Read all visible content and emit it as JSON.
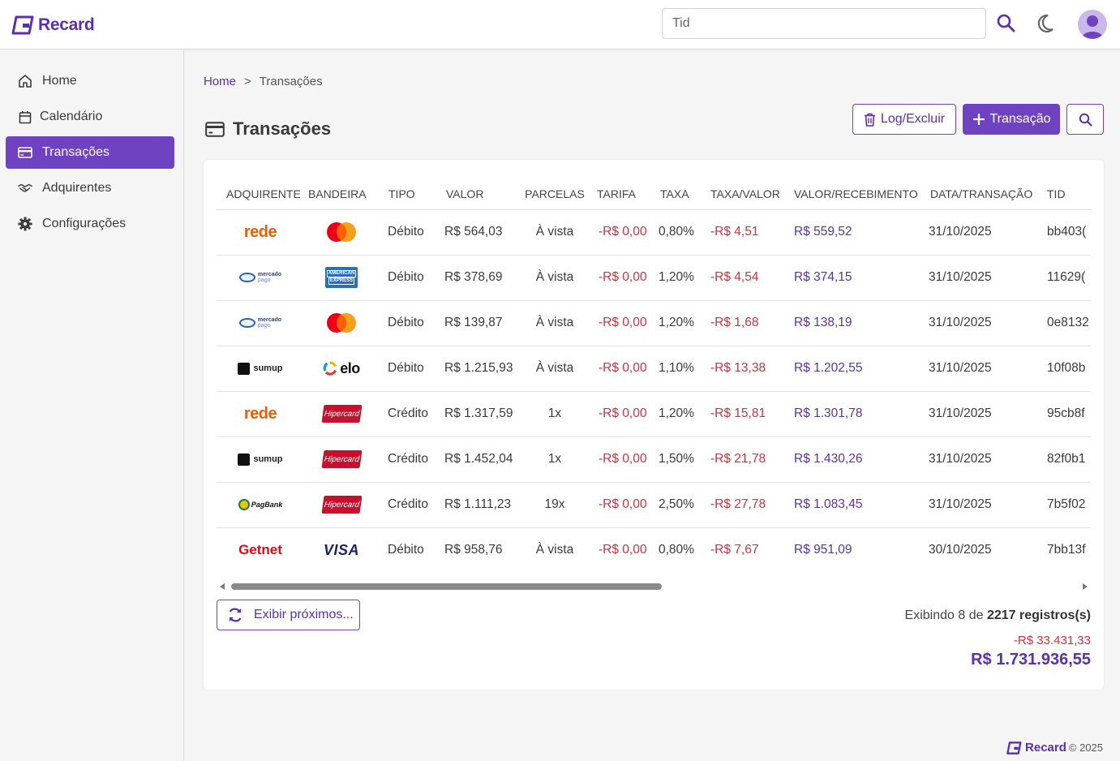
{
  "header": {
    "logo_text": "Recard",
    "search_placeholder": "Tid"
  },
  "sidebar": {
    "items": [
      {
        "label": "Home",
        "icon": "home-icon"
      },
      {
        "label": "Calendário",
        "icon": "calendar-icon"
      },
      {
        "label": "Transações",
        "icon": "card-icon",
        "active": true
      },
      {
        "label": "Adquirentes",
        "icon": "handshake-icon"
      },
      {
        "label": "Configurações",
        "icon": "gear-icon"
      }
    ]
  },
  "breadcrumb": {
    "home": "Home",
    "separator": ">",
    "current": "Transações"
  },
  "page": {
    "title": "Transações",
    "log_button": "Log/Excluir",
    "new_button": "Transação"
  },
  "table": {
    "columns": [
      "ADQUIRENTE",
      "BANDEIRA",
      "TIPO",
      "VALOR",
      "PARCELAS",
      "TARIFA",
      "TAXA",
      "TAXA/VALOR",
      "VALOR/RECEBIMENTO",
      "DATA/TRANSAÇÃO",
      "TID"
    ],
    "rows": [
      {
        "adquirente": "rede",
        "bandeira": "mastercard",
        "tipo": "Débito",
        "valor": "R$ 564,03",
        "parcelas": "À vista",
        "tarifa": "-R$ 0,00",
        "taxa": "0,80%",
        "taxa_valor": "-R$ 4,51",
        "recebimento": "R$ 559,52",
        "data": "31/10/2025",
        "tid": "bb403("
      },
      {
        "adquirente": "mercadopago",
        "bandeira": "amex",
        "tipo": "Débito",
        "valor": "R$ 378,69",
        "parcelas": "À vista",
        "tarifa": "-R$ 0,00",
        "taxa": "1,20%",
        "taxa_valor": "-R$ 4,54",
        "recebimento": "R$ 374,15",
        "data": "31/10/2025",
        "tid": "11629("
      },
      {
        "adquirente": "mercadopago",
        "bandeira": "mastercard",
        "tipo": "Débito",
        "valor": "R$ 139,87",
        "parcelas": "À vista",
        "tarifa": "-R$ 0,00",
        "taxa": "1,20%",
        "taxa_valor": "-R$ 1,68",
        "recebimento": "R$ 138,19",
        "data": "31/10/2025",
        "tid": "0e8132"
      },
      {
        "adquirente": "sumup",
        "bandeira": "elo",
        "tipo": "Débito",
        "valor": "R$ 1.215,93",
        "parcelas": "À vista",
        "tarifa": "-R$ 0,00",
        "taxa": "1,10%",
        "taxa_valor": "-R$ 13,38",
        "recebimento": "R$ 1.202,55",
        "data": "31/10/2025",
        "tid": "10f08b"
      },
      {
        "adquirente": "rede",
        "bandeira": "hipercard",
        "tipo": "Crédito",
        "valor": "R$ 1.317,59",
        "parcelas": "1x",
        "tarifa": "-R$ 0,00",
        "taxa": "1,20%",
        "taxa_valor": "-R$ 15,81",
        "recebimento": "R$ 1.301,78",
        "data": "31/10/2025",
        "tid": "95cb8f"
      },
      {
        "adquirente": "sumup",
        "bandeira": "hipercard",
        "tipo": "Crédito",
        "valor": "R$ 1.452,04",
        "parcelas": "1x",
        "tarifa": "-R$ 0,00",
        "taxa": "1,50%",
        "taxa_valor": "-R$ 21,78",
        "recebimento": "R$ 1.430,26",
        "data": "31/10/2025",
        "tid": "82f0b1"
      },
      {
        "adquirente": "pagbank",
        "bandeira": "hipercard",
        "tipo": "Crédito",
        "valor": "R$ 1.111,23",
        "parcelas": "19x",
        "tarifa": "-R$ 0,00",
        "taxa": "2,50%",
        "taxa_valor": "-R$ 27,78",
        "recebimento": "R$ 1.083,45",
        "data": "31/10/2025",
        "tid": "7b5f02"
      },
      {
        "adquirente": "getnet",
        "bandeira": "visa",
        "tipo": "Débito",
        "valor": "R$ 958,76",
        "parcelas": "À vista",
        "tarifa": "-R$ 0,00",
        "taxa": "0,80%",
        "taxa_valor": "-R$ 7,67",
        "recebimento": "R$ 951,09",
        "data": "30/10/2025",
        "tid": "7bb13f"
      }
    ]
  },
  "logos": {
    "rede": "rede",
    "mercadopago_top": "mercado",
    "mercadopago_bottom": "pago",
    "sumup": "sumup",
    "pagbank": "PagBank",
    "getnet": "Getnet",
    "visa": "VISA",
    "elo": "elo",
    "hipercard": "Hipercard",
    "amex_top": "AMERICAN",
    "amex_bottom": "EXPRESS"
  },
  "footer_section": {
    "more_button": "Exibir próximos...",
    "showing_prefix": "Exibindo 8 de ",
    "showing_bold": "2217 registros(s)",
    "total_negative": "-R$ 33.431,33",
    "total_positive": "R$ 1.731.936,55"
  },
  "footer": {
    "logo_text": "Recard",
    "copyright": "© 2025"
  },
  "colors": {
    "accent": "#6f42c1",
    "negative": "#d62f3c",
    "positive": "#5b2fb0"
  }
}
